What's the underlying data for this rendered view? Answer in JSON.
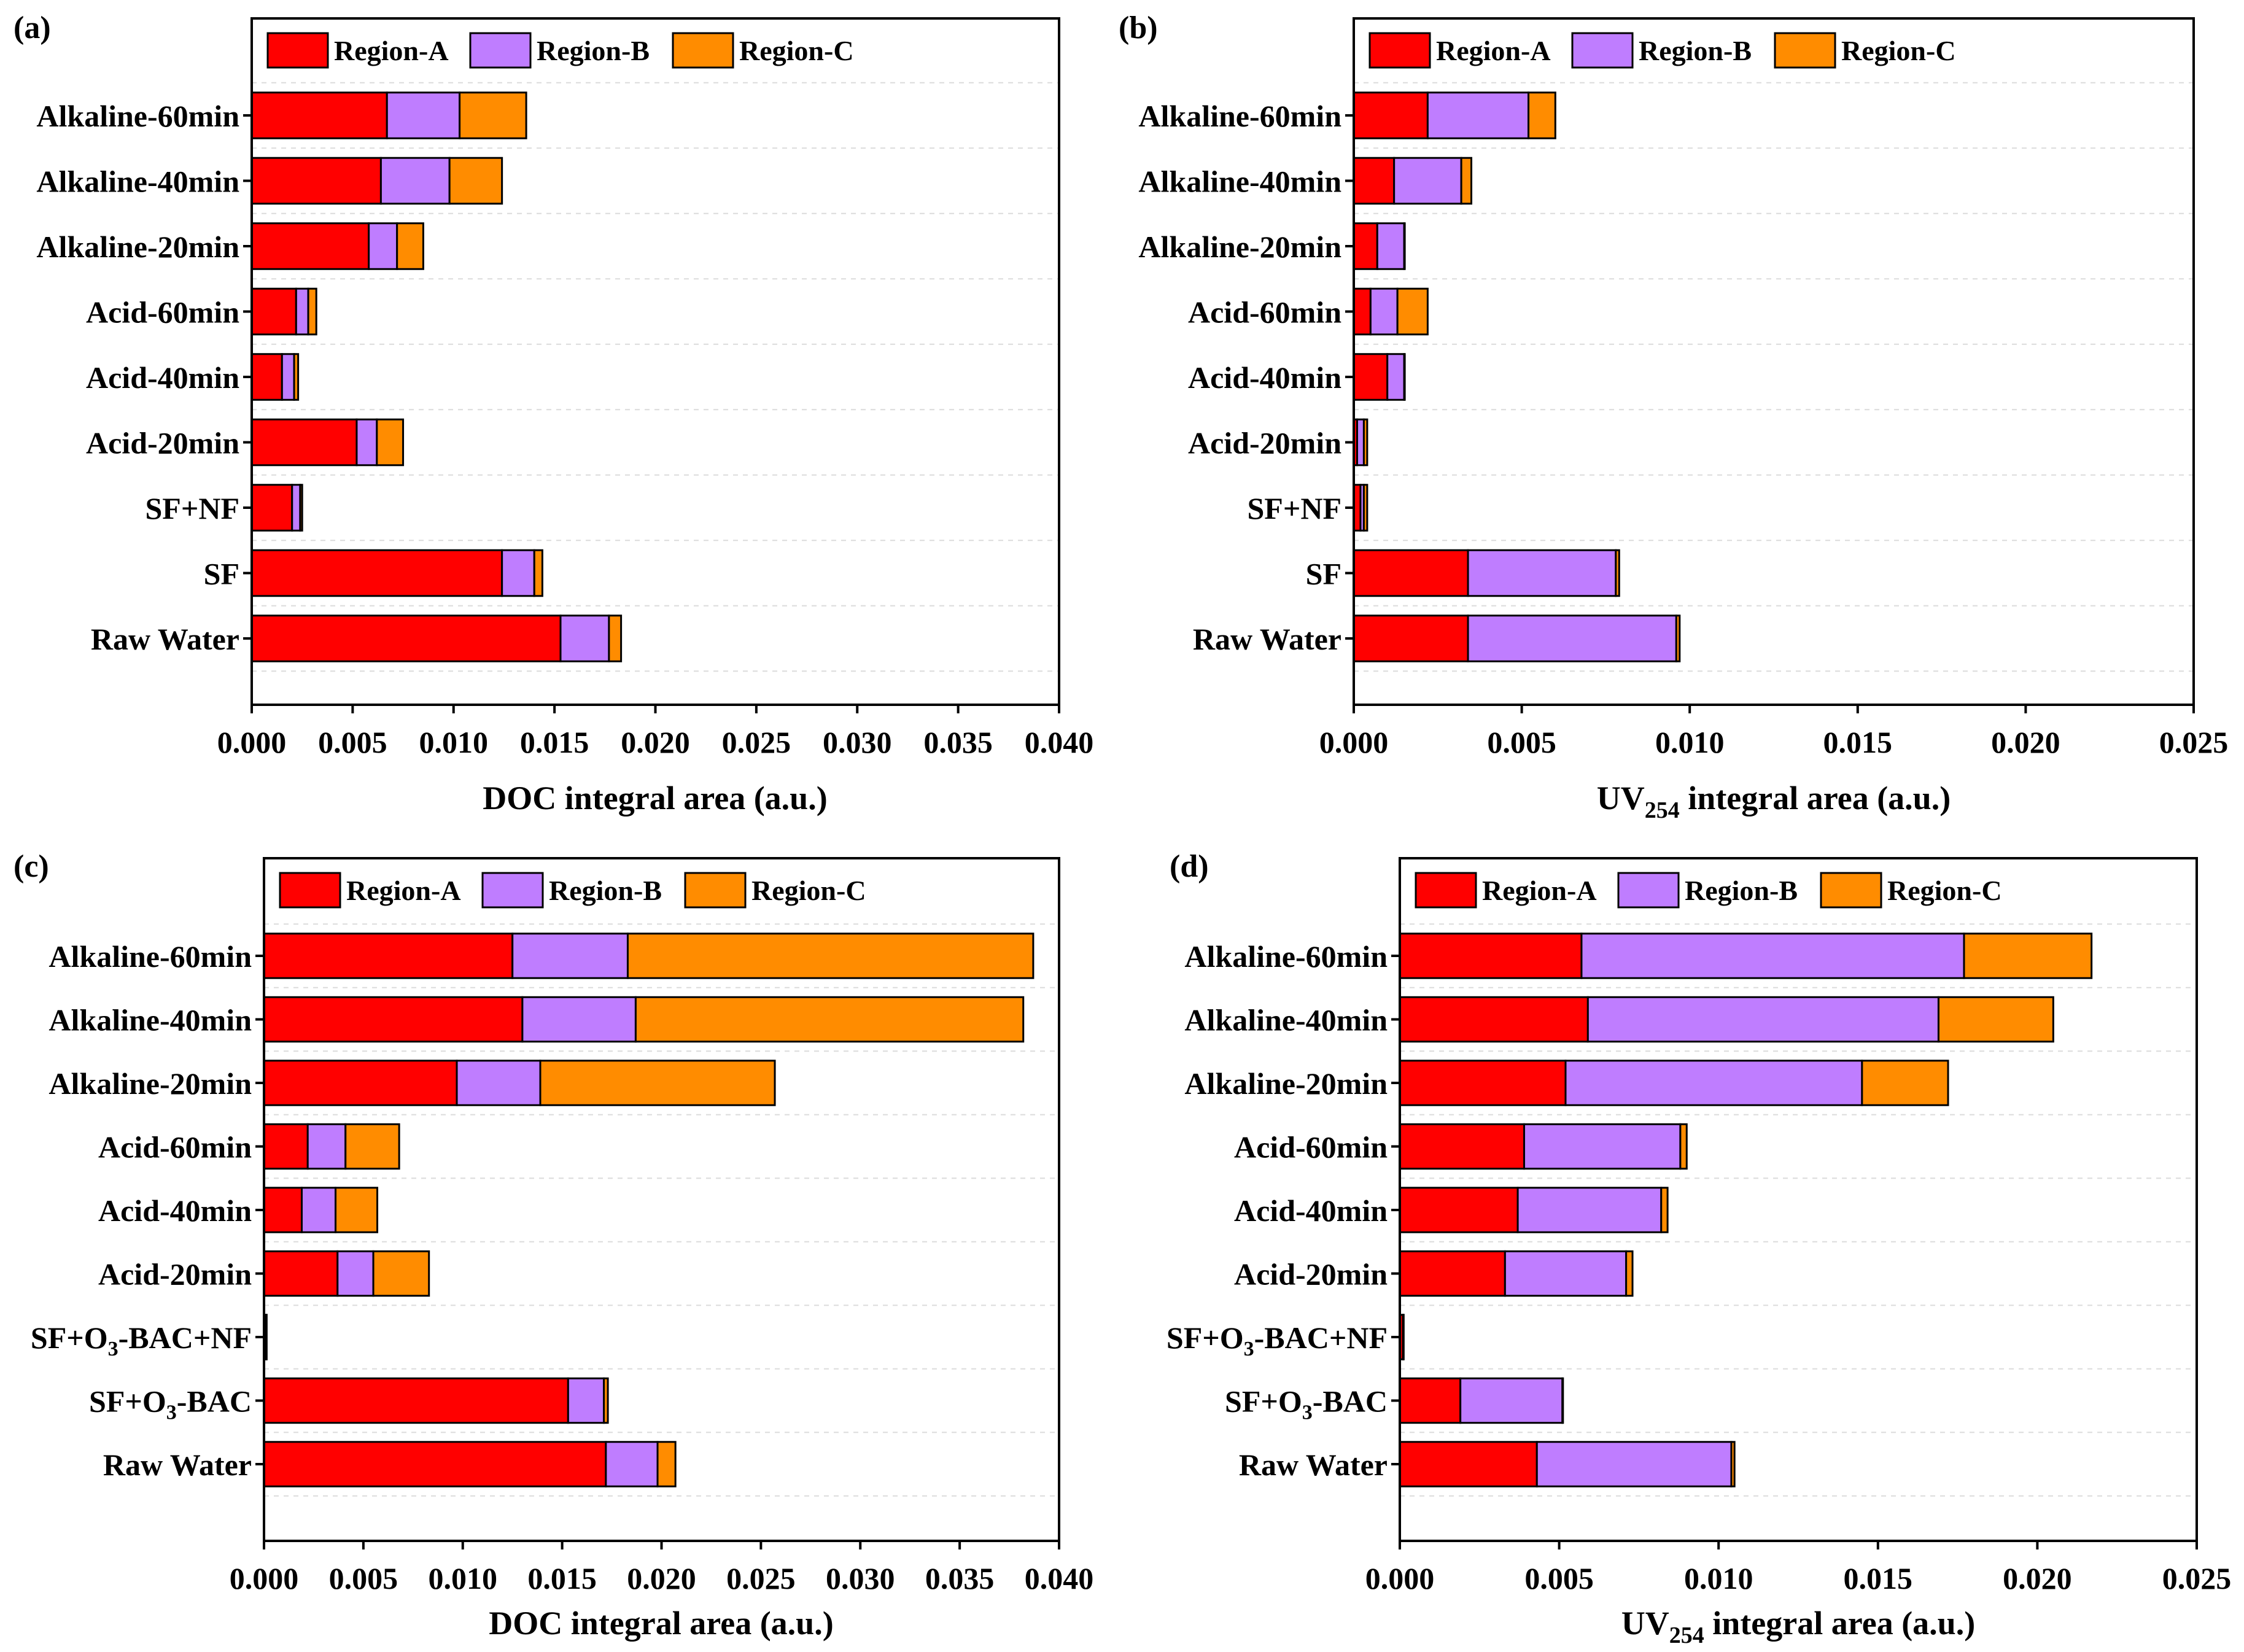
{
  "colors": {
    "region_a": "#ff0000",
    "region_b": "#bf7dff",
    "region_c": "#ff8c00"
  },
  "chart_data": [
    {
      "panel_label": "(a)",
      "type": "bar",
      "orientation": "horizontal",
      "stacked": true,
      "xlabel_main": "DOC integral area (a.u.)",
      "xlabel_sub": "",
      "xlabel_tail": "",
      "xlim": [
        0,
        0.04
      ],
      "xticks": [
        "0.000",
        "0.005",
        "0.010",
        "0.015",
        "0.020",
        "0.025",
        "0.030",
        "0.035",
        "0.040"
      ],
      "legend_position": "top-left",
      "categories": [
        {
          "text": "Raw Water",
          "sub": "",
          "tail": ""
        },
        {
          "text": "SF",
          "sub": "",
          "tail": ""
        },
        {
          "text": "SF+NF",
          "sub": "",
          "tail": ""
        },
        {
          "text": "Acid-20min",
          "sub": "",
          "tail": ""
        },
        {
          "text": "Acid-40min",
          "sub": "",
          "tail": ""
        },
        {
          "text": "Acid-60min",
          "sub": "",
          "tail": ""
        },
        {
          "text": "Alkaline-20min",
          "sub": "",
          "tail": ""
        },
        {
          "text": "Alkaline-40min",
          "sub": "",
          "tail": ""
        },
        {
          "text": "Alkaline-60min",
          "sub": "",
          "tail": ""
        }
      ],
      "series": [
        {
          "name": "Region-A",
          "values": [
            0.0153,
            0.0124,
            0.002,
            0.0052,
            0.0015,
            0.0022,
            0.0058,
            0.0064,
            0.0067
          ]
        },
        {
          "name": "Region-B",
          "values": [
            0.0024,
            0.0016,
            0.0004,
            0.001,
            0.0006,
            0.0006,
            0.0014,
            0.0034,
            0.0036
          ]
        },
        {
          "name": "Region-C",
          "values": [
            0.0006,
            0.0004,
            0.0001,
            0.0013,
            0.0002,
            0.0004,
            0.0013,
            0.0026,
            0.0033
          ]
        }
      ]
    },
    {
      "panel_label": "(b)",
      "type": "bar",
      "orientation": "horizontal",
      "stacked": true,
      "xlabel_main": "UV",
      "xlabel_sub": "254",
      "xlabel_tail": " integral area (a.u.)",
      "xlim": [
        0,
        0.025
      ],
      "xticks": [
        "0.000",
        "0.005",
        "0.010",
        "0.015",
        "0.020",
        "0.025"
      ],
      "legend_position": "top-left",
      "categories": [
        {
          "text": "Raw Water",
          "sub": "",
          "tail": ""
        },
        {
          "text": "SF",
          "sub": "",
          "tail": ""
        },
        {
          "text": "SF+NF",
          "sub": "",
          "tail": ""
        },
        {
          "text": "Acid-20min",
          "sub": "",
          "tail": ""
        },
        {
          "text": "Acid-40min",
          "sub": "",
          "tail": ""
        },
        {
          "text": "Acid-60min",
          "sub": "",
          "tail": ""
        },
        {
          "text": "Alkaline-20min",
          "sub": "",
          "tail": ""
        },
        {
          "text": "Alkaline-40min",
          "sub": "",
          "tail": ""
        },
        {
          "text": "Alkaline-60min",
          "sub": "",
          "tail": ""
        }
      ],
      "series": [
        {
          "name": "Region-A",
          "values": [
            0.0034,
            0.0034,
            0.0002,
            0.0001,
            0.001,
            0.0005,
            0.0007,
            0.0012,
            0.0022
          ]
        },
        {
          "name": "Region-B",
          "values": [
            0.0062,
            0.0044,
            0.0001,
            0.0002,
            0.0005,
            0.0008,
            0.0008,
            0.002,
            0.003
          ]
        },
        {
          "name": "Region-C",
          "values": [
            0.0001,
            0.0001,
            0.0001,
            0.0001,
            0.0,
            0.0009,
            0.0,
            0.0003,
            0.0008
          ]
        }
      ]
    },
    {
      "panel_label": "(c)",
      "type": "bar",
      "orientation": "horizontal",
      "stacked": true,
      "xlabel_main": "DOC integral area (a.u.)",
      "xlabel_sub": "",
      "xlabel_tail": "",
      "xlim": [
        0,
        0.04
      ],
      "xticks": [
        "0.000",
        "0.005",
        "0.010",
        "0.015",
        "0.020",
        "0.025",
        "0.030",
        "0.035",
        "0.040"
      ],
      "legend_position": "top-left",
      "categories": [
        {
          "text": "Raw Water",
          "sub": "",
          "tail": ""
        },
        {
          "text": "SF+O",
          "sub": "3",
          "tail": "-BAC"
        },
        {
          "text": "SF+O",
          "sub": "3",
          "tail": "-BAC+NF"
        },
        {
          "text": "Acid-20min",
          "sub": "",
          "tail": ""
        },
        {
          "text": "Acid-40min",
          "sub": "",
          "tail": ""
        },
        {
          "text": "Acid-60min",
          "sub": "",
          "tail": ""
        },
        {
          "text": "Alkaline-20min",
          "sub": "",
          "tail": ""
        },
        {
          "text": "Alkaline-40min",
          "sub": "",
          "tail": ""
        },
        {
          "text": "Alkaline-60min",
          "sub": "",
          "tail": ""
        }
      ],
      "series": [
        {
          "name": "Region-A",
          "values": [
            0.0172,
            0.0153,
            0.0001,
            0.0037,
            0.0019,
            0.0022,
            0.0097,
            0.013,
            0.0125
          ]
        },
        {
          "name": "Region-B",
          "values": [
            0.0026,
            0.0018,
            0.0,
            0.0018,
            0.0017,
            0.0019,
            0.0042,
            0.0057,
            0.0058
          ]
        },
        {
          "name": "Region-C",
          "values": [
            0.0009,
            0.0002,
            0.0,
            0.0028,
            0.0021,
            0.0027,
            0.0118,
            0.0195,
            0.0204
          ]
        }
      ]
    },
    {
      "panel_label": "(d)",
      "type": "bar",
      "orientation": "horizontal",
      "stacked": true,
      "xlabel_main": "UV",
      "xlabel_sub": "254",
      "xlabel_tail": " integral area (a.u.)",
      "xlim": [
        0,
        0.025
      ],
      "xticks": [
        "0.000",
        "0.005",
        "0.010",
        "0.015",
        "0.020",
        "0.025"
      ],
      "legend_position": "top-left",
      "categories": [
        {
          "text": "Raw Water",
          "sub": "",
          "tail": ""
        },
        {
          "text": "SF+O",
          "sub": "3",
          "tail": "-BAC"
        },
        {
          "text": "SF+O",
          "sub": "3",
          "tail": "-BAC+NF"
        },
        {
          "text": "Acid-20min",
          "sub": "",
          "tail": ""
        },
        {
          "text": "Acid-40min",
          "sub": "",
          "tail": ""
        },
        {
          "text": "Acid-60min",
          "sub": "",
          "tail": ""
        },
        {
          "text": "Alkaline-20min",
          "sub": "",
          "tail": ""
        },
        {
          "text": "Alkaline-40min",
          "sub": "",
          "tail": ""
        },
        {
          "text": "Alkaline-60min",
          "sub": "",
          "tail": ""
        }
      ],
      "series": [
        {
          "name": "Region-A",
          "values": [
            0.0043,
            0.0019,
            0.0001,
            0.0033,
            0.0037,
            0.0039,
            0.0052,
            0.0059,
            0.0057
          ]
        },
        {
          "name": "Region-B",
          "values": [
            0.0061,
            0.0032,
            0.0,
            0.0038,
            0.0045,
            0.0049,
            0.0093,
            0.011,
            0.012
          ]
        },
        {
          "name": "Region-C",
          "values": [
            0.0001,
            0.0,
            0.0,
            0.0002,
            0.0002,
            0.0002,
            0.0027,
            0.0036,
            0.004
          ]
        }
      ]
    }
  ]
}
